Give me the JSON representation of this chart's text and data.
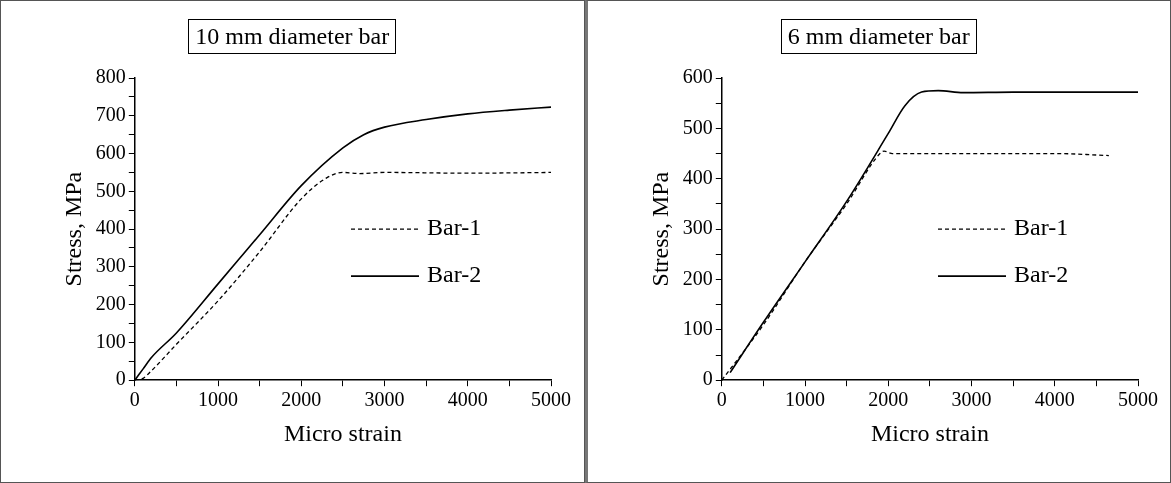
{
  "chart_data": [
    {
      "type": "line",
      "title": "10 mm diameter bar",
      "xlabel": "Micro strain",
      "ylabel": "Stress, MPa",
      "xlim": [
        0,
        5000
      ],
      "ylim": [
        0,
        800
      ],
      "xticks": [
        0,
        {
          "value": 500,
          "label": null
        },
        1000,
        {
          "value": 1500,
          "label": null
        },
        2000,
        {
          "value": 2500,
          "label": null
        },
        3000,
        {
          "value": 3500,
          "label": null
        },
        4000,
        {
          "value": 4500,
          "label": null
        },
        5000
      ],
      "yticks": [
        0,
        {
          "value": 50,
          "label": null
        },
        100,
        {
          "value": 150,
          "label": null
        },
        200,
        {
          "value": 250,
          "label": null
        },
        300,
        {
          "value": 350,
          "label": null
        },
        400,
        {
          "value": 450,
          "label": null
        },
        500,
        {
          "value": 550,
          "label": null
        },
        600,
        {
          "value": 650,
          "label": null
        },
        700,
        {
          "value": 750,
          "label": null
        },
        800
      ],
      "grid": false,
      "legend": "right",
      "marker": "none",
      "series": [
        {
          "name": "Bar-1",
          "color": "#000000",
          "line_style": "dashed",
          "x": [
            0,
            100,
            200,
            500,
            1000,
            1500,
            2000,
            2300,
            2500,
            2700,
            3000,
            4000,
            5000
          ],
          "values": [
            0,
            5,
            25,
            95,
            210,
            340,
            480,
            535,
            550,
            547,
            550,
            548,
            550
          ]
        },
        {
          "name": "Bar-2",
          "color": "#000000",
          "line_style": "solid",
          "x": [
            0,
            100,
            200,
            500,
            1000,
            1500,
            2000,
            2500,
            2750,
            3000,
            3500,
            4000,
            4500,
            5000
          ],
          "values": [
            0,
            30,
            60,
            125,
            255,
            385,
            515,
            615,
            650,
            670,
            690,
            705,
            715,
            723
          ]
        }
      ]
    },
    {
      "type": "line",
      "title": "6 mm diameter bar",
      "xlabel": "Micro strain",
      "ylabel": "Stress, MPa",
      "xlim": [
        0,
        5000
      ],
      "ylim": [
        0,
        600
      ],
      "xticks": [
        0,
        {
          "value": 500,
          "label": null
        },
        1000,
        {
          "value": 1500,
          "label": null
        },
        2000,
        {
          "value": 2500,
          "label": null
        },
        3000,
        {
          "value": 3500,
          "label": null
        },
        4000,
        {
          "value": 4500,
          "label": null
        },
        5000
      ],
      "yticks": [
        0,
        {
          "value": 50,
          "label": null
        },
        100,
        {
          "value": 150,
          "label": null
        },
        200,
        {
          "value": 250,
          "label": null
        },
        300,
        {
          "value": 350,
          "label": null
        },
        400,
        {
          "value": 450,
          "label": null
        },
        500,
        {
          "value": 550,
          "label": null
        },
        600
      ],
      "grid": false,
      "legend": "right",
      "marker": "none",
      "series": [
        {
          "name": "Bar-1",
          "color": "#000000",
          "line_style": "dashed",
          "x": [
            0,
            500,
            1000,
            1500,
            1900,
            1950,
            2050,
            3000,
            4000,
            4650
          ],
          "values": [
            0,
            110,
            235,
            350,
            450,
            455,
            450,
            450,
            450,
            446
          ]
        },
        {
          "name": "Bar-2",
          "color": "#000000",
          "line_style": "solid",
          "x": [
            100,
            500,
            1000,
            1500,
            2000,
            2200,
            2400,
            2600,
            2900,
            3500,
            5000
          ],
          "values": [
            15,
            115,
            235,
            355,
            490,
            545,
            572,
            575,
            571,
            572,
            572
          ]
        }
      ]
    }
  ]
}
